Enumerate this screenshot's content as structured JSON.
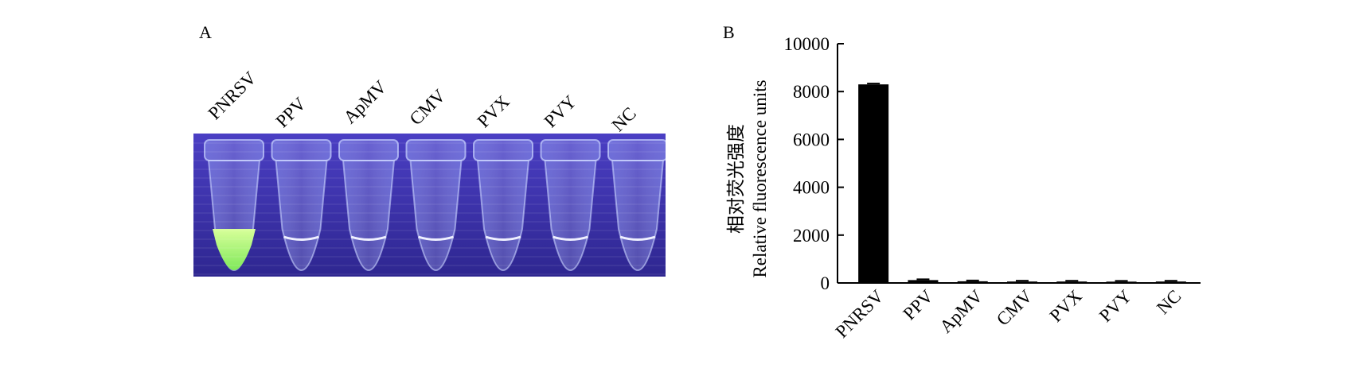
{
  "panels": {
    "a": {
      "letter": "A",
      "lanes": [
        "PNRSV",
        "PPV",
        "ApMV",
        "CMV",
        "PVX",
        "PVY",
        "NC"
      ]
    },
    "b": {
      "letter": "B"
    }
  },
  "colors": {
    "photo_background": "#3a2ea6",
    "tube_outline": "#c9d3ff",
    "positive_fluorescence": "#a8f06a",
    "bar": "#000000"
  },
  "chart_data": {
    "type": "bar",
    "categories": [
      "PNRSV",
      "PPV",
      "ApMV",
      "CMV",
      "PVX",
      "PVY",
      "NC"
    ],
    "values": [
      8300,
      120,
      70,
      60,
      60,
      55,
      60
    ],
    "ylabel_cn": "相对荧光强度",
    "ylabel": "Relative fluorescence units",
    "xlabel": "",
    "ylim": [
      0,
      10000
    ],
    "yticks": [
      0,
      2000,
      4000,
      6000,
      8000,
      10000
    ],
    "grid": false,
    "legend": "none",
    "error_bars": true
  }
}
